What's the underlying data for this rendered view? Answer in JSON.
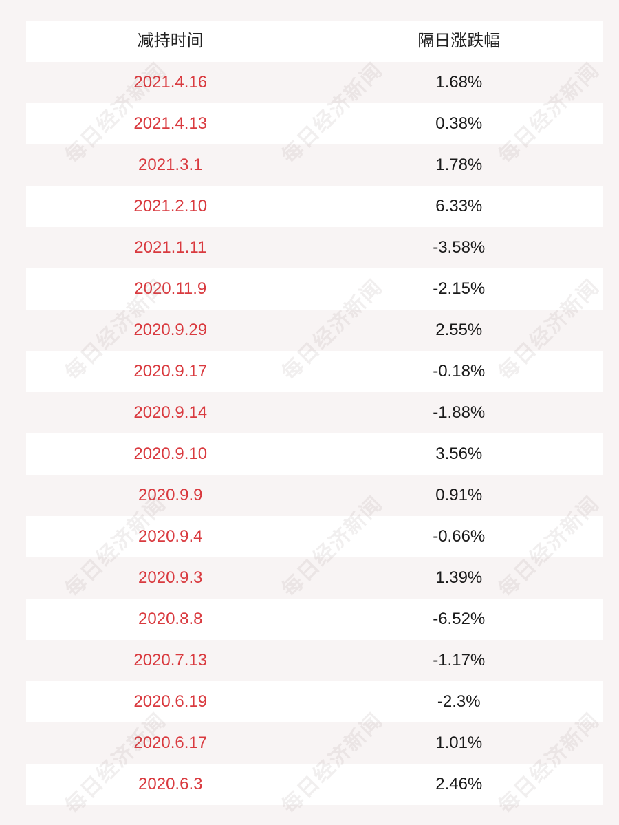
{
  "header": {
    "col_date": "减持时间",
    "col_change": "隔日涨跌幅"
  },
  "rows": [
    {
      "date": "2021.4.16",
      "change": "1.68%"
    },
    {
      "date": "2021.4.13",
      "change": "0.38%"
    },
    {
      "date": "2021.3.1",
      "change": "1.78%"
    },
    {
      "date": "2021.2.10",
      "change": "6.33%"
    },
    {
      "date": "2021.1.11",
      "change": "-3.58%"
    },
    {
      "date": "2020.11.9",
      "change": "-2.15%"
    },
    {
      "date": "2020.9.29",
      "change": "2.55%"
    },
    {
      "date": "2020.9.17",
      "change": "-0.18%"
    },
    {
      "date": "2020.9.14",
      "change": "-1.88%"
    },
    {
      "date": "2020.9.10",
      "change": "3.56%"
    },
    {
      "date": "2020.9.9",
      "change": "0.91%"
    },
    {
      "date": "2020.9.4",
      "change": "-0.66%"
    },
    {
      "date": "2020.9.3",
      "change": "1.39%"
    },
    {
      "date": "2020.8.8",
      "change": "-6.52%"
    },
    {
      "date": "2020.7.13",
      "change": "-1.17%"
    },
    {
      "date": "2020.6.19",
      "change": "-2.3%"
    },
    {
      "date": "2020.6.17",
      "change": "1.01%"
    },
    {
      "date": "2020.6.3",
      "change": "2.46%"
    }
  ],
  "watermark": "每日经济新闻",
  "colors": {
    "date_text": "#d93a3f",
    "page_background": "#f8f4f4"
  }
}
